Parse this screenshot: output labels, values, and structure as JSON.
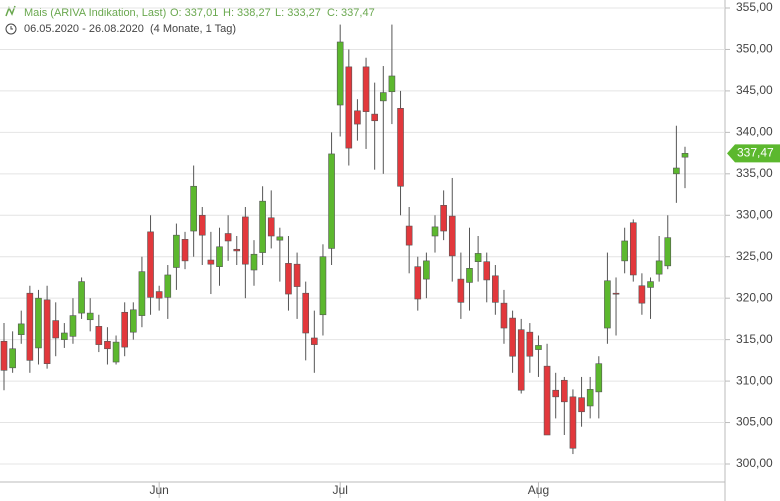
{
  "header": {
    "instrument": "Mais (ARIVA Indikation, Last)",
    "open": "O: 337,01",
    "high": "H: 338,27",
    "low": "L: 333,27",
    "close": "C: 337,47",
    "range": "06.05.2020 - 26.08.2020",
    "period": "(4 Monate, 1 Tag)"
  },
  "chart_data": {
    "type": "candlestick",
    "categories": [
      null,
      null,
      null,
      null,
      null,
      null,
      null,
      null,
      null,
      null,
      null,
      null,
      null,
      null,
      null,
      null,
      null,
      null,
      "Jun",
      null,
      null,
      null,
      null,
      null,
      null,
      null,
      null,
      null,
      null,
      null,
      null,
      null,
      null,
      null,
      null,
      null,
      null,
      null,
      null,
      "Jul",
      null,
      null,
      null,
      null,
      null,
      null,
      null,
      null,
      null,
      null,
      null,
      null,
      null,
      null,
      null,
      null,
      null,
      null,
      null,
      null,
      null,
      null,
      "Aug",
      null,
      null,
      null,
      null,
      null,
      null,
      null,
      null,
      null,
      null,
      null,
      null,
      null,
      null,
      null,
      null,
      null
    ],
    "open": [
      314.8,
      311.6,
      315.6,
      320.6,
      314,
      319.8,
      317.3,
      315,
      315.4,
      318.2,
      317.4,
      316.6,
      314.8,
      312.3,
      318.3,
      315.9,
      317.9,
      328,
      320.8,
      320.1,
      323.7,
      327.1,
      328.1,
      330,
      324.6,
      323.8,
      327.8,
      325.9,
      329.8,
      323.4,
      325.5,
      329.7,
      327,
      324.2,
      324.1,
      320.6,
      315.2,
      318,
      326,
      343.3,
      347.9,
      342.6,
      347.9,
      342.2,
      343.8,
      344.9,
      342.9,
      328.7,
      323.8,
      322.3,
      327.5,
      331.2,
      329.9,
      322.3,
      321.9,
      324.4,
      324.4,
      322.7,
      319.4,
      317.6,
      316.2,
      315.9,
      313.8,
      311.8,
      308.9,
      310.1,
      308.1,
      308,
      307,
      308.7,
      316.4,
      320.6,
      324.5,
      329.1,
      321.5,
      321.3,
      322.9,
      323.9,
      335,
      337.01
    ],
    "high": [
      317,
      316,
      318.5,
      321.5,
      321,
      321.5,
      319.5,
      317,
      320,
      322.5,
      320,
      318,
      316.5,
      315.5,
      319.5,
      319.5,
      325,
      330,
      321.5,
      324,
      329,
      328,
      336,
      331,
      328,
      328.5,
      330,
      327.5,
      331,
      327,
      333.5,
      333,
      328.5,
      327.5,
      325.5,
      322,
      318.5,
      326.5,
      340,
      353,
      350,
      344,
      349,
      346,
      348,
      353,
      345,
      331,
      325,
      325.5,
      330,
      333,
      334.5,
      325.5,
      328.5,
      327.5,
      325.5,
      324,
      321,
      318.5,
      317.5,
      317,
      315.5,
      314.5,
      311,
      310.5,
      309,
      310.5,
      310.5,
      313,
      325.5,
      322.5,
      328.5,
      329.5,
      323,
      322.5,
      327.5,
      330,
      340.8,
      338.27
    ],
    "low": [
      308.9,
      311,
      314.5,
      311,
      312,
      311.5,
      313,
      314,
      314.5,
      317.5,
      316,
      313.5,
      312,
      312,
      313,
      315,
      316.5,
      318,
      318.5,
      317.5,
      321,
      323.5,
      325,
      324,
      320.5,
      321.5,
      324.5,
      324,
      320,
      321.5,
      324,
      326,
      322,
      318.5,
      317.5,
      312.5,
      311,
      315.5,
      324,
      339.5,
      336,
      339,
      338,
      335.5,
      335,
      341,
      330,
      323,
      318.5,
      320,
      325.5,
      327,
      322,
      317.5,
      318.5,
      322,
      319.5,
      318,
      314.5,
      311,
      308.5,
      311,
      310.5,
      303.5,
      305.5,
      303.5,
      301.2,
      304.5,
      305.5,
      305.5,
      314.5,
      315.5,
      323,
      322,
      318,
      317.5,
      322,
      323.5,
      331.5,
      333.27
    ],
    "close": [
      311.3,
      313.9,
      316.9,
      312.5,
      320,
      312.1,
      315.2,
      315.8,
      317.9,
      322,
      318.2,
      314.4,
      313.9,
      314.7,
      314.1,
      318.6,
      323.2,
      320.1,
      320,
      322.8,
      327.6,
      324.5,
      333.5,
      327.6,
      324.1,
      326.2,
      326.9,
      325.7,
      324.1,
      325.3,
      331.7,
      327.5,
      327.4,
      320.5,
      321.4,
      315.8,
      314.4,
      325,
      337.4,
      350.9,
      338.1,
      341,
      342.5,
      341.4,
      344.8,
      346.8,
      333.5,
      326.4,
      319.9,
      324.5,
      328.6,
      328.1,
      325.1,
      319.5,
      323.6,
      325.4,
      322.2,
      319.5,
      316.4,
      313,
      308.9,
      313,
      314.3,
      303.5,
      308.1,
      307.5,
      301.9,
      306.3,
      309,
      312.1,
      322.1,
      320.5,
      326.9,
      322.8,
      319.4,
      322,
      324.5,
      327.3,
      335.7,
      337.47
    ],
    "up_color": "#5cb82e",
    "down_color": "#e2383c",
    "ylim": [
      299,
      356
    ],
    "yticks": [
      {
        "value": 300,
        "label": "300,00"
      },
      {
        "value": 305,
        "label": "305,00"
      },
      {
        "value": 310,
        "label": "310,00"
      },
      {
        "value": 315,
        "label": "315,00"
      },
      {
        "value": 320,
        "label": "320,00"
      },
      {
        "value": 325,
        "label": "325,00"
      },
      {
        "value": 330,
        "label": "330,00"
      },
      {
        "value": 335,
        "label": "335,00"
      },
      {
        "value": 340,
        "label": "340,00"
      },
      {
        "value": 345,
        "label": "345,00"
      },
      {
        "value": 350,
        "label": "350,00"
      },
      {
        "value": 355,
        "label": "355,00"
      }
    ],
    "last_price": {
      "value": 337.47,
      "label": "337,47"
    },
    "grid": true
  }
}
